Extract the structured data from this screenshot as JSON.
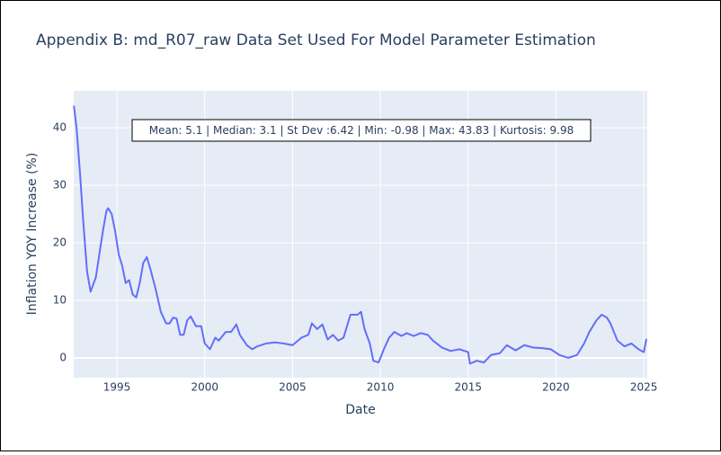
{
  "chart_data": {
    "type": "line",
    "title": "Appendix B: md_R07_raw Data Set Used For Model Parameter Estimation",
    "x_label": "Date",
    "y_label": "Inflation YOY Increase (%)",
    "annotation": "Mean: 5.1 | Median: 3.1 | St Dev :6.42 | Min: -0.98 | Max: 43.83 | Kurtosis: 9.98",
    "color": "#636efa",
    "grid": true,
    "x": [
      1992.55,
      1992.7,
      1992.9,
      1993.1,
      1993.3,
      1993.5,
      1993.8,
      1994.0,
      1994.2,
      1994.4,
      1994.5,
      1994.7,
      1994.9,
      1995.1,
      1995.3,
      1995.5,
      1995.7,
      1995.9,
      1996.1,
      1996.3,
      1996.5,
      1996.7,
      1996.9,
      1997.2,
      1997.5,
      1997.8,
      1998.0,
      1998.2,
      1998.4,
      1998.6,
      1998.8,
      1999.0,
      1999.2,
      1999.5,
      1999.8,
      2000.0,
      2000.3,
      2000.6,
      2000.8,
      2001.2,
      2001.5,
      2001.8,
      2002.0,
      2002.4,
      2002.7,
      2003.0,
      2003.5,
      2004.0,
      2004.5,
      2005.0,
      2005.5,
      2005.9,
      2006.1,
      2006.4,
      2006.7,
      2007.0,
      2007.3,
      2007.6,
      2007.9,
      2008.3,
      2008.7,
      2008.9,
      2009.1,
      2009.4,
      2009.6,
      2009.9,
      2010.2,
      2010.5,
      2010.8,
      2011.2,
      2011.5,
      2011.9,
      2012.3,
      2012.7,
      2013.0,
      2013.5,
      2014.0,
      2014.5,
      2015.0,
      2015.1,
      2015.5,
      2015.9,
      2016.3,
      2016.8,
      2017.2,
      2017.7,
      2018.2,
      2018.7,
      2019.2,
      2019.7,
      2020.2,
      2020.7,
      2021.2,
      2021.6,
      2021.9,
      2022.3,
      2022.6,
      2022.9,
      2023.1,
      2023.5,
      2023.9,
      2024.3,
      2024.7,
      2025.0,
      2025.15
    ],
    "values": [
      43.8,
      40,
      32,
      23,
      15,
      11.5,
      14,
      18,
      22,
      25.5,
      26,
      25,
      22,
      18,
      16,
      13,
      13.5,
      11,
      10.5,
      13,
      16.5,
      17.5,
      15.5,
      12,
      8,
      6,
      6,
      7,
      6.8,
      4,
      4,
      6.5,
      7.2,
      5.5,
      5.5,
      2.5,
      1.5,
      3.5,
      3,
      4.5,
      4.5,
      5.8,
      4,
      2.2,
      1.5,
      2,
      2.5,
      2.7,
      2.5,
      2.2,
      3.5,
      4,
      6,
      5,
      5.8,
      3.2,
      4,
      3,
      3.5,
      7.5,
      7.5,
      8,
      5,
      2.5,
      -0.5,
      -0.8,
      1.5,
      3.5,
      4.5,
      3.8,
      4.3,
      3.8,
      4.3,
      4,
      3,
      1.8,
      1.2,
      1.5,
      1,
      -1,
      -0.5,
      -0.8,
      0.5,
      0.8,
      2.2,
      1.3,
      2.2,
      1.8,
      1.7,
      1.5,
      0.5,
      0,
      0.5,
      2.5,
      4.5,
      6.5,
      7.5,
      7,
      6,
      3,
      2,
      2.5,
      1.5,
      1,
      3.3
    ],
    "xlim": [
      1992.54,
      2025.2
    ],
    "xticks": [
      1995,
      2000,
      2005,
      2010,
      2015,
      2020,
      2025
    ],
    "ylim": [
      -3.44,
      46.4
    ],
    "yticks": [
      0,
      10,
      20,
      30,
      40
    ]
  }
}
